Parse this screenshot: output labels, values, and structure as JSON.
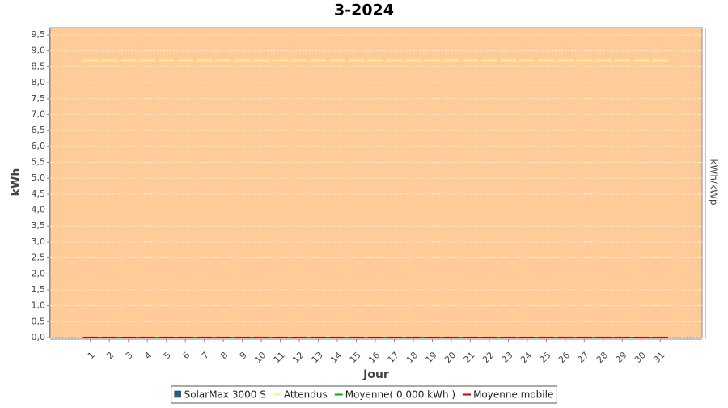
{
  "chart_data": {
    "type": "bar",
    "title": "3-2024",
    "x_label": "Jour",
    "y_label": "kWh",
    "y2_label": "kWh/kWp",
    "categories": [
      "1",
      "2",
      "3",
      "4",
      "5",
      "6",
      "7",
      "8",
      "9",
      "10",
      "11",
      "12",
      "13",
      "14",
      "15",
      "16",
      "17",
      "18",
      "19",
      "20",
      "21",
      "22",
      "23",
      "24",
      "25",
      "26",
      "27",
      "28",
      "29",
      "30",
      "31"
    ],
    "series": [
      {
        "name": "SolarMax 3000 S",
        "color": "#1f5f8b",
        "render": "bar",
        "values": [
          0,
          0,
          0,
          0,
          0,
          0,
          0,
          0,
          0,
          0,
          0,
          0,
          0,
          0,
          0,
          0,
          0,
          0,
          0,
          0,
          0,
          0,
          0,
          0,
          0,
          0,
          0,
          0,
          0,
          0,
          0
        ]
      },
      {
        "name": "Attendus",
        "color": "#ffee88",
        "render": "dash",
        "values": [
          8.7,
          8.7,
          8.7,
          8.7,
          8.7,
          8.7,
          8.7,
          8.7,
          8.7,
          8.7,
          8.7,
          8.7,
          8.7,
          8.7,
          8.7,
          8.7,
          8.7,
          8.7,
          8.7,
          8.7,
          8.7,
          8.7,
          8.7,
          8.7,
          8.7,
          8.7,
          8.7,
          8.7,
          8.7,
          8.7,
          8.7
        ]
      },
      {
        "name": "Moyenne( 0,000 kWh )",
        "color": "#00b000",
        "render": "line",
        "values": [
          0,
          0,
          0,
          0,
          0,
          0,
          0,
          0,
          0,
          0,
          0,
          0,
          0,
          0,
          0,
          0,
          0,
          0,
          0,
          0,
          0,
          0,
          0,
          0,
          0,
          0,
          0,
          0,
          0,
          0,
          0
        ]
      },
      {
        "name": "Moyenne mobile",
        "color": "#cc0000",
        "render": "dash",
        "values": [
          0,
          0,
          0,
          0,
          0,
          0,
          0,
          0,
          0,
          0,
          0,
          0,
          0,
          0,
          0,
          0,
          0,
          0,
          0,
          0,
          0,
          0,
          0,
          0,
          0,
          0,
          0,
          0,
          0,
          0,
          0
        ]
      }
    ],
    "ylim": [
      0,
      9.73
    ],
    "yticks": [
      {
        "value": 0,
        "label": "0,0"
      },
      {
        "value": 0.5,
        "label": "0,5"
      },
      {
        "value": 1,
        "label": "1,0"
      },
      {
        "value": 1.5,
        "label": "1,5"
      },
      {
        "value": 2,
        "label": "2,0"
      },
      {
        "value": 2.5,
        "label": "2,5"
      },
      {
        "value": 3,
        "label": "3,0"
      },
      {
        "value": 3.5,
        "label": "3,5"
      },
      {
        "value": 4,
        "label": "4,0"
      },
      {
        "value": 4.5,
        "label": "4,5"
      },
      {
        "value": 5,
        "label": "5,0"
      },
      {
        "value": 5.5,
        "label": "5,5"
      },
      {
        "value": 6,
        "label": "6,0"
      },
      {
        "value": 6.5,
        "label": "6,5"
      },
      {
        "value": 7,
        "label": "7,0"
      },
      {
        "value": 7.5,
        "label": "7,5"
      },
      {
        "value": 8,
        "label": "8,0"
      },
      {
        "value": 8.5,
        "label": "8,5"
      },
      {
        "value": 9,
        "label": "9,0"
      },
      {
        "value": 9.5,
        "label": "9,5"
      }
    ],
    "grid": true,
    "background": "#ffcc99"
  }
}
